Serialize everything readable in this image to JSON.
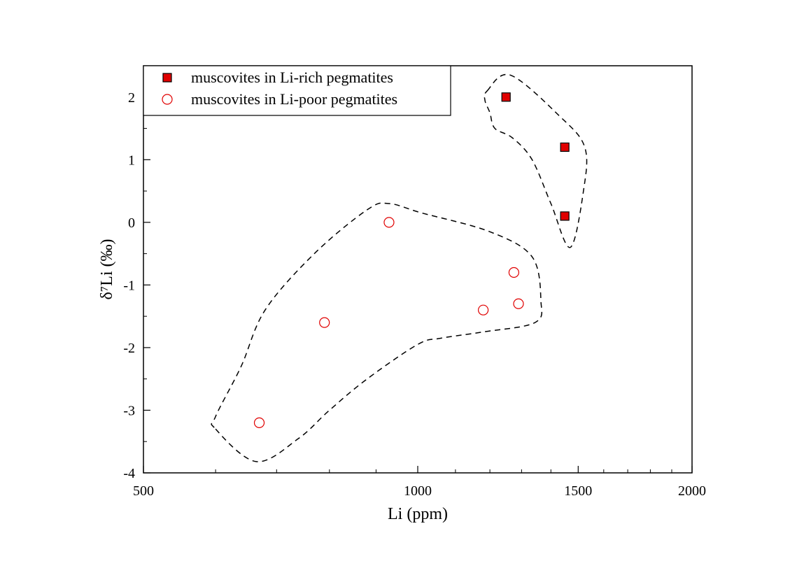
{
  "chart_data": {
    "type": "scatter",
    "title": "",
    "xlabel": "Li (ppm)",
    "ylabel": "δ⁷Li (‰)",
    "xscale": "log",
    "xlim": [
      500,
      2000
    ],
    "ylim": [
      -4,
      2.5
    ],
    "grid": false,
    "legend_placement": "top-left",
    "x_ticks": [
      500,
      1000,
      1500,
      2000
    ],
    "x_tick_labels": [
      "500",
      "1000",
      "1500",
      "2000"
    ],
    "y_ticks": [
      -4,
      -3,
      -2,
      -1,
      0,
      1,
      2
    ],
    "y_tick_labels": [
      "-4",
      "-3",
      "-2",
      "-1",
      "0",
      "1",
      "2"
    ],
    "series": [
      {
        "name": "muscovites in Li-rich pegmatites",
        "marker": "filled-square",
        "color": "#e00000",
        "points": [
          {
            "x": 1250,
            "y": 2.0
          },
          {
            "x": 1450,
            "y": 1.2
          },
          {
            "x": 1450,
            "y": 0.1
          }
        ]
      },
      {
        "name": "muscovites in Li-poor pegmatites",
        "marker": "open-circle",
        "color": "#e00000",
        "points": [
          {
            "x": 670,
            "y": -3.2
          },
          {
            "x": 790,
            "y": -1.6
          },
          {
            "x": 930,
            "y": 0.0
          },
          {
            "x": 1180,
            "y": -1.4
          },
          {
            "x": 1275,
            "y": -0.8
          },
          {
            "x": 1290,
            "y": -1.3
          }
        ]
      }
    ],
    "enclosures": [
      {
        "style": "dashed",
        "group": "Li-rich",
        "outline": [
          [
            1192,
            2.1
          ],
          [
            1264,
            2.35
          ],
          [
            1430,
            1.7
          ],
          [
            1525,
            1.2
          ],
          [
            1520,
            0.5
          ],
          [
            1470,
            -0.4
          ],
          [
            1400,
            0.3
          ],
          [
            1335,
            1.0
          ],
          [
            1270,
            1.35
          ],
          [
            1215,
            1.5
          ],
          [
            1200,
            1.75
          ],
          [
            1185,
            1.95
          ],
          [
            1192,
            2.1
          ]
        ]
      },
      {
        "style": "dashed",
        "group": "Li-poor",
        "outline": [
          [
            600,
            -3.3
          ],
          [
            665,
            -3.82
          ],
          [
            740,
            -3.45
          ],
          [
            800,
            -3.0
          ],
          [
            880,
            -2.5
          ],
          [
            1000,
            -1.95
          ],
          [
            1060,
            -1.85
          ],
          [
            1180,
            -1.75
          ],
          [
            1345,
            -1.6
          ],
          [
            1365,
            -1.25
          ],
          [
            1335,
            -0.55
          ],
          [
            1200,
            -0.15
          ],
          [
            1010,
            0.15
          ],
          [
            930,
            0.3
          ],
          [
            880,
            0.2
          ],
          [
            770,
            -0.5
          ],
          [
            680,
            -1.4
          ],
          [
            640,
            -2.3
          ],
          [
            600,
            -3.1
          ],
          [
            600,
            -3.3
          ]
        ]
      }
    ]
  }
}
